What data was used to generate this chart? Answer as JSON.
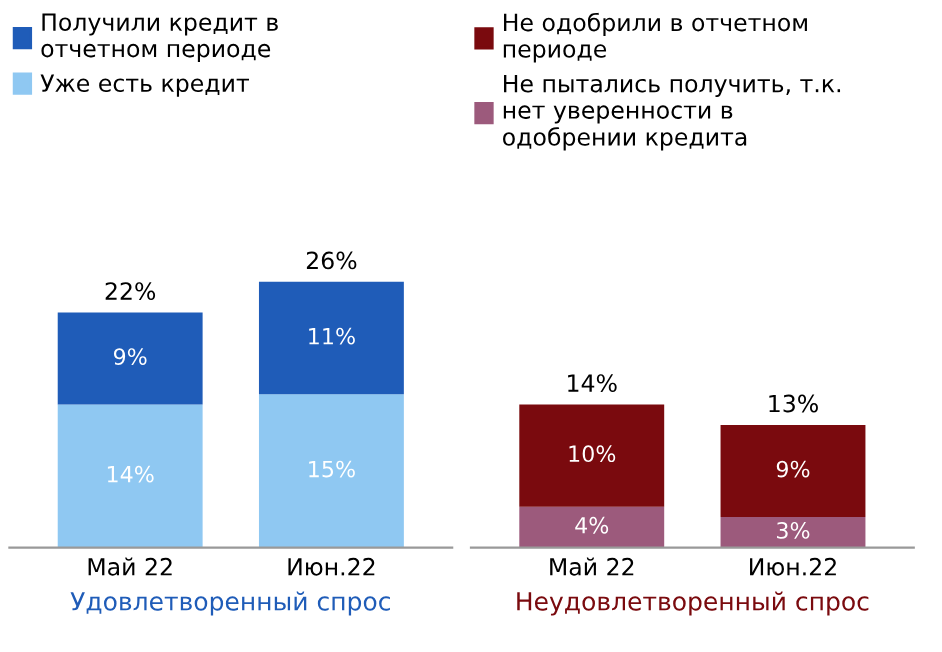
{
  "chart_data": [
    {
      "type": "bar",
      "stacked": true,
      "categories": [
        "Май 22",
        "Июн.22"
      ],
      "xlabel": "Удовлетворенный спрос",
      "legend": "top",
      "series": [
        {
          "name": "Уже есть кредит",
          "color": "#8fc8f2",
          "values": [
            14,
            15
          ],
          "value_labels": [
            "14%",
            "15%"
          ]
        },
        {
          "name": "Получили кредит в\nотчетном периоде",
          "color": "#1f5cb8",
          "values": [
            9,
            11
          ],
          "value_labels": [
            "9%",
            "11%"
          ]
        }
      ],
      "totals": [
        "22%",
        "26%"
      ]
    },
    {
      "type": "bar",
      "stacked": true,
      "categories": [
        "Май 22",
        "Июн.22"
      ],
      "xlabel": "Неудовлетворенный спрос",
      "legend": "top",
      "series": [
        {
          "name": "Не пытались получить, т.к.\nнет уверенности в\nодобрении кредита",
          "color": "#9c5a7c",
          "values": [
            4,
            3
          ],
          "value_labels": [
            "4%",
            "3%"
          ]
        },
        {
          "name": "Не одобрили в отчетном\nпериоде",
          "color": "#7a0a0e",
          "values": [
            10,
            9
          ],
          "value_labels": [
            "10%",
            "9%"
          ]
        }
      ],
      "totals": [
        "14%",
        "13%"
      ]
    }
  ]
}
